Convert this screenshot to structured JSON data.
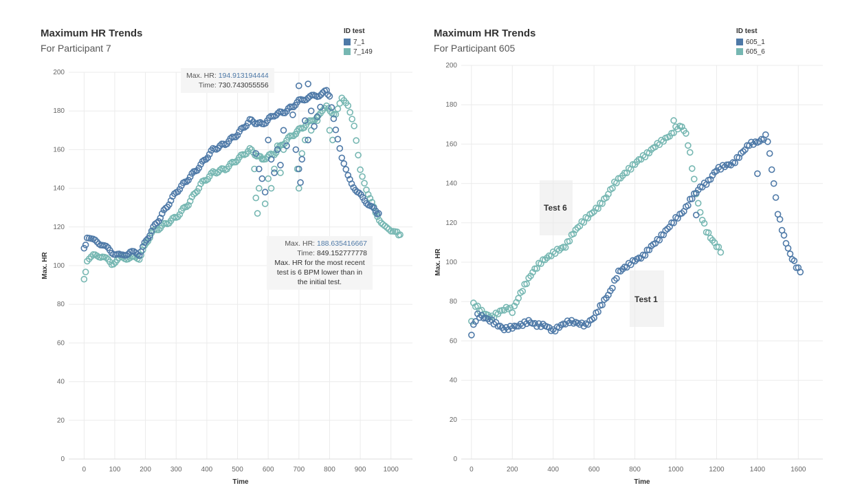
{
  "colors": {
    "series_dark": "#4e79a7",
    "series_light": "#76b7b2",
    "grid": "#ebebeb"
  },
  "left": {
    "title": "Maximum HR Trends",
    "subtitle": "For Participant 7",
    "legend_title": "ID test",
    "legend": [
      "7_1",
      "7_149"
    ],
    "tooltip1": {
      "label": "Max. HR:",
      "hr": "194.913194444",
      "time_label": "Time:",
      "time": "730.743055556"
    },
    "tooltip2": {
      "label": "Max. HR:",
      "hr": "188.635416667",
      "time_label": "Time:",
      "time": "849.152777778",
      "note": "Max. HR for the most recent test is 6 BPM lower than in the initial test."
    }
  },
  "right": {
    "title": "Maximum HR Trends",
    "subtitle": "For Participant 605",
    "legend_title": "ID test",
    "legend": [
      "605_1",
      "605_6"
    ],
    "annotation_test6": "Test 6",
    "annotation_test1": "Test 1"
  },
  "chart_data": [
    {
      "type": "scatter",
      "title": "Maximum HR Trends",
      "subtitle": "For Participant 7",
      "xlabel": "Time",
      "ylabel": "Max. HR",
      "xlim": [
        -50,
        1070
      ],
      "ylim": [
        0,
        200
      ],
      "xticks": [
        0,
        100,
        200,
        300,
        400,
        500,
        600,
        700,
        800,
        900,
        1000
      ],
      "yticks": [
        0,
        20,
        40,
        60,
        80,
        100,
        120,
        140,
        160,
        180,
        200
      ],
      "series": [
        {
          "name": "7_1",
          "trend": [
            [
              0,
              109
            ],
            [
              10,
              114
            ],
            [
              30,
              113
            ],
            [
              60,
              111
            ],
            [
              90,
              107
            ],
            [
              120,
              105
            ],
            [
              150,
              107
            ],
            [
              180,
              106
            ],
            [
              220,
              118
            ],
            [
              260,
              128
            ],
            [
              300,
              138
            ],
            [
              340,
              145
            ],
            [
              380,
              152
            ],
            [
              420,
              160
            ],
            [
              460,
              163
            ],
            [
              500,
              168
            ],
            [
              540,
              175
            ],
            [
              580,
              173
            ],
            [
              620,
              178
            ],
            [
              660,
              180
            ],
            [
              700,
              185
            ],
            [
              730,
              187
            ],
            [
              760,
              188
            ],
            [
              790,
              190
            ],
            [
              800,
              188
            ],
            [
              820,
              170
            ],
            [
              840,
              155
            ],
            [
              860,
              146
            ],
            [
              890,
              138
            ],
            [
              920,
              133
            ],
            [
              950,
              128
            ],
            [
              960,
              127
            ]
          ],
          "scatter": [
            [
              560,
              158
            ],
            [
              570,
              150
            ],
            [
              580,
              145
            ],
            [
              590,
              138
            ],
            [
              600,
              165
            ],
            [
              610,
              155
            ],
            [
              620,
              148
            ],
            [
              630,
              160
            ],
            [
              640,
              152
            ],
            [
              650,
              170
            ],
            [
              660,
              162
            ],
            [
              680,
              178
            ],
            [
              690,
              160
            ],
            [
              700,
              150
            ],
            [
              705,
              143
            ],
            [
              710,
              155
            ],
            [
              720,
              175
            ],
            [
              730,
              165
            ],
            [
              740,
              180
            ],
            [
              750,
              172
            ],
            [
              760,
              177
            ],
            [
              770,
              182
            ],
            [
              700,
              193
            ],
            [
              730,
              194
            ]
          ]
        },
        {
          "name": "7_149",
          "trend": [
            [
              0,
              93
            ],
            [
              10,
              102
            ],
            [
              30,
              105
            ],
            [
              60,
              105
            ],
            [
              90,
              101
            ],
            [
              120,
              104
            ],
            [
              150,
              104
            ],
            [
              180,
              104
            ],
            [
              220,
              117
            ],
            [
              260,
              121
            ],
            [
              300,
              125
            ],
            [
              340,
              132
            ],
            [
              380,
              142
            ],
            [
              420,
              148
            ],
            [
              460,
              150
            ],
            [
              500,
              155
            ],
            [
              540,
              160
            ],
            [
              580,
              155
            ],
            [
              620,
              158
            ],
            [
              660,
              165
            ],
            [
              700,
              170
            ],
            [
              740,
              175
            ],
            [
              770,
              178
            ],
            [
              790,
              182
            ],
            [
              820,
              178
            ],
            [
              840,
              186
            ],
            [
              860,
              182
            ],
            [
              880,
              172
            ],
            [
              900,
              150
            ],
            [
              920,
              140
            ],
            [
              950,
              127
            ],
            [
              980,
              120
            ],
            [
              1000,
              117
            ],
            [
              1020,
              117
            ],
            [
              1030,
              116
            ]
          ],
          "scatter": [
            [
              555,
              150
            ],
            [
              560,
              135
            ],
            [
              565,
              127
            ],
            [
              570,
              140
            ],
            [
              580,
              155
            ],
            [
              590,
              132
            ],
            [
              600,
              145
            ],
            [
              610,
              140
            ],
            [
              620,
              150
            ],
            [
              630,
              162
            ],
            [
              640,
              148
            ],
            [
              650,
              160
            ],
            [
              690,
              168
            ],
            [
              695,
              150
            ],
            [
              700,
              140
            ],
            [
              710,
              158
            ],
            [
              720,
              165
            ],
            [
              740,
              170
            ],
            [
              760,
              175
            ],
            [
              800,
              170
            ],
            [
              810,
              165
            ]
          ]
        }
      ]
    },
    {
      "type": "scatter",
      "title": "Maximum HR Trends",
      "subtitle": "For Participant 605",
      "xlabel": "Time",
      "ylabel": "Max. HR",
      "xlim": [
        -50,
        1720
      ],
      "ylim": [
        0,
        200
      ],
      "xticks": [
        0,
        200,
        400,
        600,
        800,
        1000,
        1200,
        1400,
        1600
      ],
      "yticks": [
        0,
        20,
        40,
        60,
        80,
        100,
        120,
        140,
        160,
        180,
        200
      ],
      "series": [
        {
          "name": "605_1",
          "trend": [
            [
              0,
              63
            ],
            [
              10,
              68
            ],
            [
              30,
              73
            ],
            [
              60,
              72
            ],
            [
              100,
              70
            ],
            [
              130,
              68
            ],
            [
              160,
              66
            ],
            [
              200,
              67
            ],
            [
              240,
              68
            ],
            [
              280,
              70
            ],
            [
              320,
              68
            ],
            [
              360,
              68
            ],
            [
              400,
              65
            ],
            [
              440,
              68
            ],
            [
              480,
              70
            ],
            [
              520,
              69
            ],
            [
              560,
              68
            ],
            [
              600,
              72
            ],
            [
              640,
              79
            ],
            [
              680,
              85
            ],
            [
              720,
              95
            ],
            [
              760,
              98
            ],
            [
              800,
              101
            ],
            [
              840,
              103
            ],
            [
              880,
              108
            ],
            [
              920,
              112
            ],
            [
              960,
              117
            ],
            [
              1000,
              122
            ],
            [
              1040,
              126
            ],
            [
              1080,
              133
            ],
            [
              1120,
              138
            ],
            [
              1160,
              141
            ],
            [
              1200,
              147
            ],
            [
              1240,
              149
            ],
            [
              1280,
              150
            ],
            [
              1320,
              155
            ],
            [
              1360,
              160
            ],
            [
              1400,
              161
            ],
            [
              1420,
              162
            ],
            [
              1440,
              164
            ],
            [
              1450,
              162
            ],
            [
              1480,
              140
            ],
            [
              1500,
              125
            ],
            [
              1530,
              113
            ],
            [
              1560,
              104
            ],
            [
              1590,
              98
            ],
            [
              1610,
              95
            ]
          ],
          "scatter": [
            [
              1100,
              124
            ],
            [
              1400,
              145
            ]
          ]
        },
        {
          "name": "605_6",
          "trend": [
            [
              0,
              70
            ],
            [
              10,
              79
            ],
            [
              30,
              77
            ],
            [
              60,
              74
            ],
            [
              100,
              72
            ],
            [
              140,
              75
            ],
            [
              180,
              77
            ],
            [
              200,
              75
            ],
            [
              230,
              82
            ],
            [
              260,
              88
            ],
            [
              300,
              95
            ],
            [
              340,
              100
            ],
            [
              380,
              103
            ],
            [
              420,
              106
            ],
            [
              460,
              108
            ],
            [
              500,
              115
            ],
            [
              540,
              120
            ],
            [
              580,
              124
            ],
            [
              620,
              128
            ],
            [
              660,
              133
            ],
            [
              700,
              140
            ],
            [
              740,
              144
            ],
            [
              780,
              148
            ],
            [
              820,
              152
            ],
            [
              860,
              155
            ],
            [
              900,
              159
            ],
            [
              940,
              162
            ],
            [
              980,
              165
            ],
            [
              1000,
              168
            ],
            [
              1030,
              169
            ],
            [
              1050,
              165
            ],
            [
              1070,
              155
            ],
            [
              1100,
              135
            ],
            [
              1120,
              125
            ],
            [
              1150,
              116
            ],
            [
              1180,
              111
            ],
            [
              1210,
              107
            ],
            [
              1220,
              105
            ]
          ],
          "scatter": [
            [
              990,
              172
            ]
          ]
        }
      ]
    }
  ]
}
